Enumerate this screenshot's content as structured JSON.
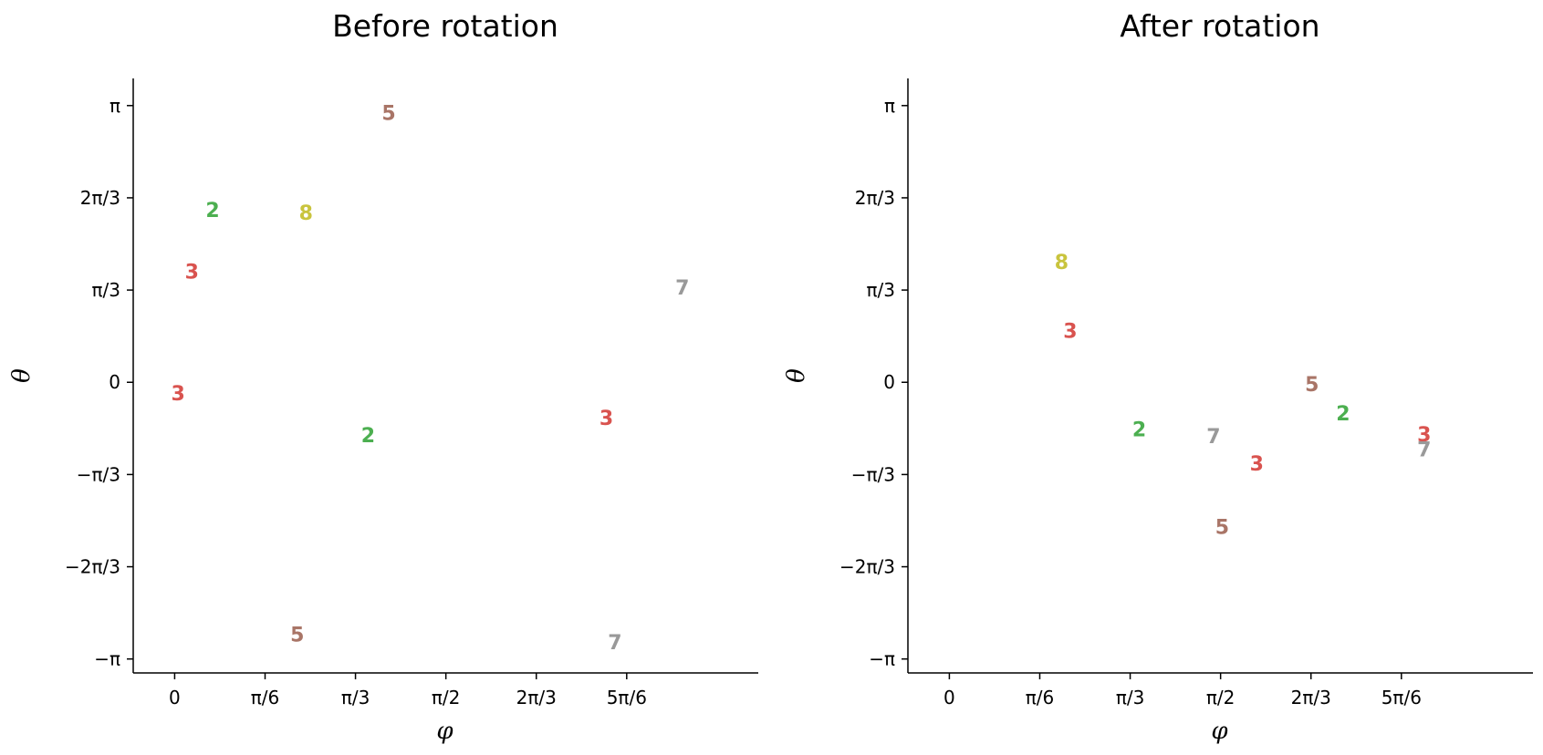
{
  "colors": {
    "2": "#4caf50",
    "3": "#d9534f",
    "5": "#a97567",
    "7": "#999999",
    "8": "#c9c43d"
  },
  "chart_data": [
    {
      "type": "scatter",
      "title": "Before rotation",
      "xlabel": "φ",
      "ylabel": "θ",
      "xlim": [
        -0.24,
        3.38
      ],
      "ylim": [
        -3.3,
        3.45
      ],
      "xticks": [
        0,
        0.5236,
        1.0472,
        1.5708,
        2.0944,
        2.618
      ],
      "xtick_labels": [
        "0",
        "π/6",
        "π/3",
        "π/2",
        "2π/3",
        "5π/6"
      ],
      "yticks": [
        -3.1416,
        -2.0944,
        -1.0472,
        0,
        1.0472,
        2.0944,
        3.1416
      ],
      "ytick_labels": [
        "−π",
        "−2π/3",
        "−π/3",
        "0",
        "π/3",
        "2π/3",
        "π"
      ],
      "points": [
        {
          "label": "5",
          "x": 1.24,
          "y": 3.06
        },
        {
          "label": "2",
          "x": 0.22,
          "y": 1.96
        },
        {
          "label": "8",
          "x": 0.76,
          "y": 1.93
        },
        {
          "label": "3",
          "x": 0.1,
          "y": 1.26
        },
        {
          "label": "7",
          "x": 2.94,
          "y": 1.08
        },
        {
          "label": "3",
          "x": 0.02,
          "y": -0.12
        },
        {
          "label": "3",
          "x": 2.5,
          "y": -0.4
        },
        {
          "label": "2",
          "x": 1.12,
          "y": -0.6
        },
        {
          "label": "5",
          "x": 0.71,
          "y": -2.86
        },
        {
          "label": "7",
          "x": 2.55,
          "y": -2.95
        }
      ]
    },
    {
      "type": "scatter",
      "title": "After rotation",
      "xlabel": "φ",
      "ylabel": "θ",
      "xlim": [
        -0.24,
        3.38
      ],
      "ylim": [
        -3.3,
        3.45
      ],
      "xticks": [
        0,
        0.5236,
        1.0472,
        1.5708,
        2.0944,
        2.618
      ],
      "xtick_labels": [
        "0",
        "π/6",
        "π/3",
        "π/2",
        "2π/3",
        "5π/6"
      ],
      "yticks": [
        -3.1416,
        -2.0944,
        -1.0472,
        0,
        1.0472,
        2.0944,
        3.1416
      ],
      "ytick_labels": [
        "−π",
        "−2π/3",
        "−π/3",
        "0",
        "π/3",
        "2π/3",
        "π"
      ],
      "points": [
        {
          "label": "8",
          "x": 0.65,
          "y": 1.37
        },
        {
          "label": "3",
          "x": 0.7,
          "y": 0.59
        },
        {
          "label": "5",
          "x": 2.1,
          "y": -0.02
        },
        {
          "label": "2",
          "x": 2.28,
          "y": -0.35
        },
        {
          "label": "2",
          "x": 1.1,
          "y": -0.53
        },
        {
          "label": "7",
          "x": 1.53,
          "y": -0.61
        },
        {
          "label": "3",
          "x": 2.75,
          "y": -0.59
        },
        {
          "label": "7",
          "x": 2.75,
          "y": -0.76
        },
        {
          "label": "3",
          "x": 1.78,
          "y": -0.92
        },
        {
          "label": "5",
          "x": 1.58,
          "y": -1.64
        }
      ]
    }
  ]
}
